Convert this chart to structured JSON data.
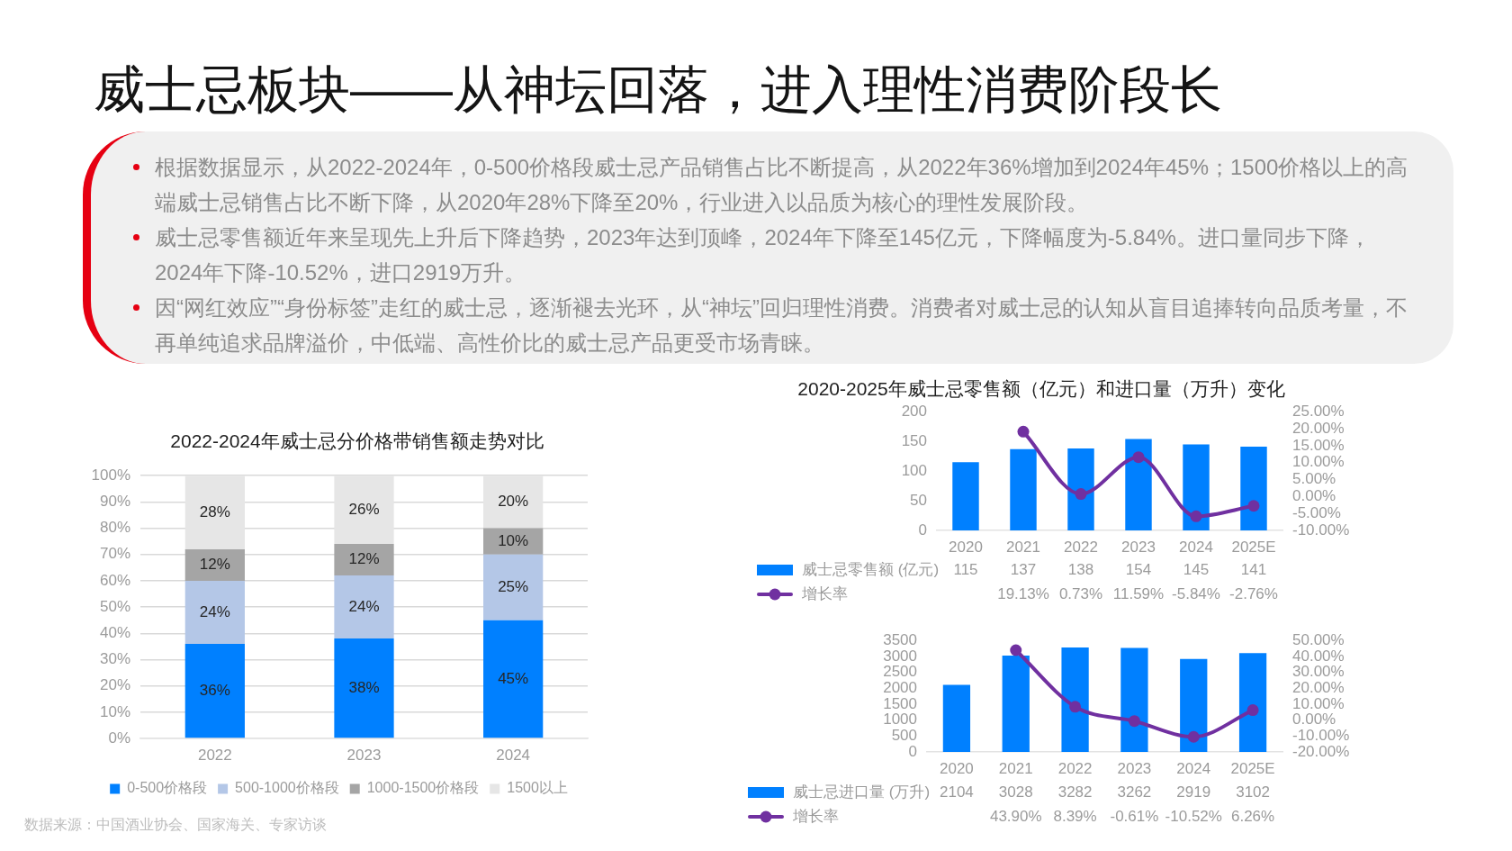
{
  "chart_data": [
    {
      "type": "other",
      "title": "威士忌板块——从神坛回落，进入理性消费阶段长",
      "annotations": [
        "根据数据显示，从2022-2024年，0-500价格段威士忌产品销售占比不断提高，从2022年36%增加到2024年45%；1500价格以上的高端威士忌销售占比不断下降，从2020年28%下降至20%，行业进入以品质为核心的理性发展阶段。",
        "威士忌零售额近年来呈现先上升后下降趋势，2023年达到顶峰，2024年下降至145亿元，下降幅度为-5.84%。进口量同步下降，2024年下降-10.52%，进口2919万升。",
        "因“网红效应”“身份标签”走红的威士忌，逐渐褪去光环，从“神坛”回归理性消费。消费者对威士忌的认知从盲目追捧转向品质考量，不再单纯追求品牌溢价，中低端、高性价比的威士忌产品更受市场青睐。"
      ]
    },
    {
      "type": "bar",
      "title": "2022-2024年威士忌分价格带销售额走势对比",
      "categories": [
        "2022",
        "2023",
        "2024"
      ],
      "stacked": true,
      "series": [
        {
          "name": "0-500价格段",
          "color": "#0080ff",
          "values": [
            36,
            38,
            45
          ],
          "value_labels": [
            "36%",
            "38%",
            "45%"
          ]
        },
        {
          "name": "500-1000价格段",
          "color": "#b4c7e7",
          "values": [
            24,
            24,
            25
          ],
          "value_labels": [
            "24%",
            "24%",
            "25%"
          ]
        },
        {
          "name": "1000-1500价格段",
          "color": "#a5a5a5",
          "values": [
            12,
            12,
            10
          ],
          "value_labels": [
            "12%",
            "12%",
            "10%"
          ]
        },
        {
          "name": "1500以上",
          "color": "#e6e6e6",
          "values": [
            28,
            26,
            20
          ],
          "value_labels": [
            "28%",
            "26%",
            "20%"
          ]
        }
      ],
      "ylim": [
        0,
        100
      ],
      "yticks": [
        {
          "value": 0,
          "label": "0%"
        },
        {
          "value": 10,
          "label": "10%"
        },
        {
          "value": 20,
          "label": "20%"
        },
        {
          "value": 30,
          "label": "30%"
        },
        {
          "value": 40,
          "label": "40%"
        },
        {
          "value": 50,
          "label": "50%"
        },
        {
          "value": 60,
          "label": "60%"
        },
        {
          "value": 70,
          "label": "70%"
        },
        {
          "value": 80,
          "label": "80%"
        },
        {
          "value": 90,
          "label": "90%"
        },
        {
          "value": 100,
          "label": "100%"
        }
      ],
      "grid": "y",
      "legend": "bottom",
      "annotations": [
        "数据来源：中国酒业协会、国家海关、专家访谈"
      ]
    },
    {
      "type": "bar",
      "title": "2020-2025年威士忌零售额（亿元）和进口量（万升）变化",
      "categories": [
        "2020",
        "2021",
        "2022",
        "2023",
        "2024",
        "2025E"
      ],
      "series": [
        {
          "name": "威士忌零售额 (亿元)",
          "color": "#0080ff",
          "values": [
            115,
            137,
            138,
            154,
            145,
            141
          ],
          "value_labels": [
            "115",
            "137",
            "138",
            "154",
            "145",
            "141"
          ]
        },
        {
          "type": "line",
          "name": "增长率",
          "color": "#7030a0",
          "axis": "y2",
          "values": [
            null,
            19.13,
            0.73,
            11.59,
            -5.84,
            -2.76
          ],
          "value_labels": [
            null,
            "19.13%",
            "0.73%",
            "11.59%",
            "-5.84%",
            "-2.76%"
          ]
        }
      ],
      "ylim": [
        0,
        200
      ],
      "yticks": [
        0,
        50,
        100,
        150,
        200
      ],
      "y2lim": [
        -10,
        25
      ],
      "y2ticks": [
        {
          "value": -10,
          "label": "-10.00%"
        },
        {
          "value": -5,
          "label": "-5.00%"
        },
        {
          "value": 0,
          "label": "0.00%"
        },
        {
          "value": 5,
          "label": "5.00%"
        },
        {
          "value": 10,
          "label": "10.00%"
        },
        {
          "value": 15,
          "label": "15.00%"
        },
        {
          "value": 20,
          "label": "20.00%"
        },
        {
          "value": 25,
          "label": "25.00%"
        }
      ],
      "legend": "bottom",
      "marker": "circle"
    },
    {
      "type": "bar",
      "categories": [
        "2020",
        "2021",
        "2022",
        "2023",
        "2024",
        "2025E"
      ],
      "series": [
        {
          "name": "威士忌进口量 (万升)",
          "color": "#0080ff",
          "values": [
            2104,
            3028,
            3282,
            3262,
            2919,
            3102
          ],
          "value_labels": [
            "2104",
            "3028",
            "3282",
            "3262",
            "2919",
            "3102"
          ]
        },
        {
          "type": "line",
          "name": "增长率",
          "color": "#7030a0",
          "axis": "y2",
          "values": [
            null,
            43.9,
            8.39,
            -0.61,
            -10.52,
            6.26
          ],
          "value_labels": [
            null,
            "43.90%",
            "8.39%",
            "-0.61%",
            "-10.52%",
            "6.26%"
          ]
        }
      ],
      "ylim": [
        0,
        3500
      ],
      "yticks": [
        0,
        500,
        1000,
        1500,
        2000,
        2500,
        3000,
        3500
      ],
      "y2lim": [
        -20,
        50
      ],
      "y2ticks": [
        {
          "value": -20,
          "label": "-20.00%"
        },
        {
          "value": -10,
          "label": "-10.00%"
        },
        {
          "value": 0,
          "label": "0.00%"
        },
        {
          "value": 10,
          "label": "10.00%"
        },
        {
          "value": 20,
          "label": "20.00%"
        },
        {
          "value": 30,
          "label": "30.00%"
        },
        {
          "value": 40,
          "label": "40.00%"
        },
        {
          "value": 50,
          "label": "50.00%"
        }
      ],
      "legend": "bottom",
      "marker": "circle"
    }
  ]
}
